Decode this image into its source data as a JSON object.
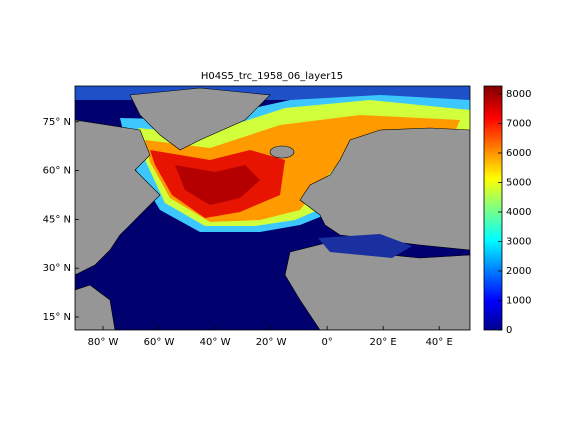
{
  "chart_data": {
    "type": "map",
    "title": "H04S5_trc_1958_06_layer15",
    "xlim": [
      -90,
      51
    ],
    "ylim": [
      11,
      86
    ],
    "xticks": [
      {
        "value": -80,
        "label": "80° W"
      },
      {
        "value": -60,
        "label": "60° W"
      },
      {
        "value": -40,
        "label": "40° W"
      },
      {
        "value": -20,
        "label": "20° W"
      },
      {
        "value": 0,
        "label": "0°"
      },
      {
        "value": 20,
        "label": "20° E"
      },
      {
        "value": 40,
        "label": "40° E"
      }
    ],
    "yticks": [
      {
        "value": 15,
        "label": "15° N"
      },
      {
        "value": 30,
        "label": "30° N"
      },
      {
        "value": 45,
        "label": "45° N"
      },
      {
        "value": 60,
        "label": "60° N"
      },
      {
        "value": 75,
        "label": "75° N"
      }
    ],
    "colorbar": {
      "colormap": "jet",
      "clim": [
        0,
        8270
      ],
      "ticks": [
        0,
        1000,
        2000,
        3000,
        4000,
        5000,
        6000,
        7000,
        8000
      ]
    }
  }
}
